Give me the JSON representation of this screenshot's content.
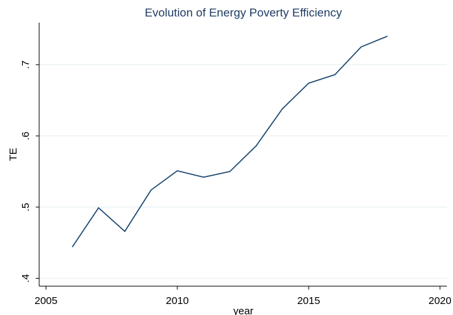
{
  "chart_data": {
    "type": "line",
    "title": "Evolution of Energy Poverty Efficiency",
    "x_label": "year",
    "y_label": "TE",
    "x": [
      2006,
      2007,
      2008,
      2009,
      2010,
      2011,
      2012,
      2013,
      2014,
      2015,
      2016,
      2017,
      2018
    ],
    "series": [
      {
        "name": "TE",
        "color": "#1a476f",
        "values": [
          0.444,
          0.499,
          0.466,
          0.524,
          0.551,
          0.542,
          0.55,
          0.586,
          0.638,
          0.674,
          0.686,
          0.725,
          0.74
        ]
      }
    ],
    "xlim": [
      2004.74,
      2020.26
    ],
    "xticks": [
      2005,
      2010,
      2015,
      2020
    ],
    "ylim": [
      0.389,
      0.759
    ],
    "yticks": [
      {
        "value": 0.4,
        "label": ".4"
      },
      {
        "value": 0.5,
        "label": ".5"
      },
      {
        "value": 0.6,
        "label": ".6"
      },
      {
        "value": 0.7,
        "label": ".7"
      }
    ],
    "grid": true
  }
}
